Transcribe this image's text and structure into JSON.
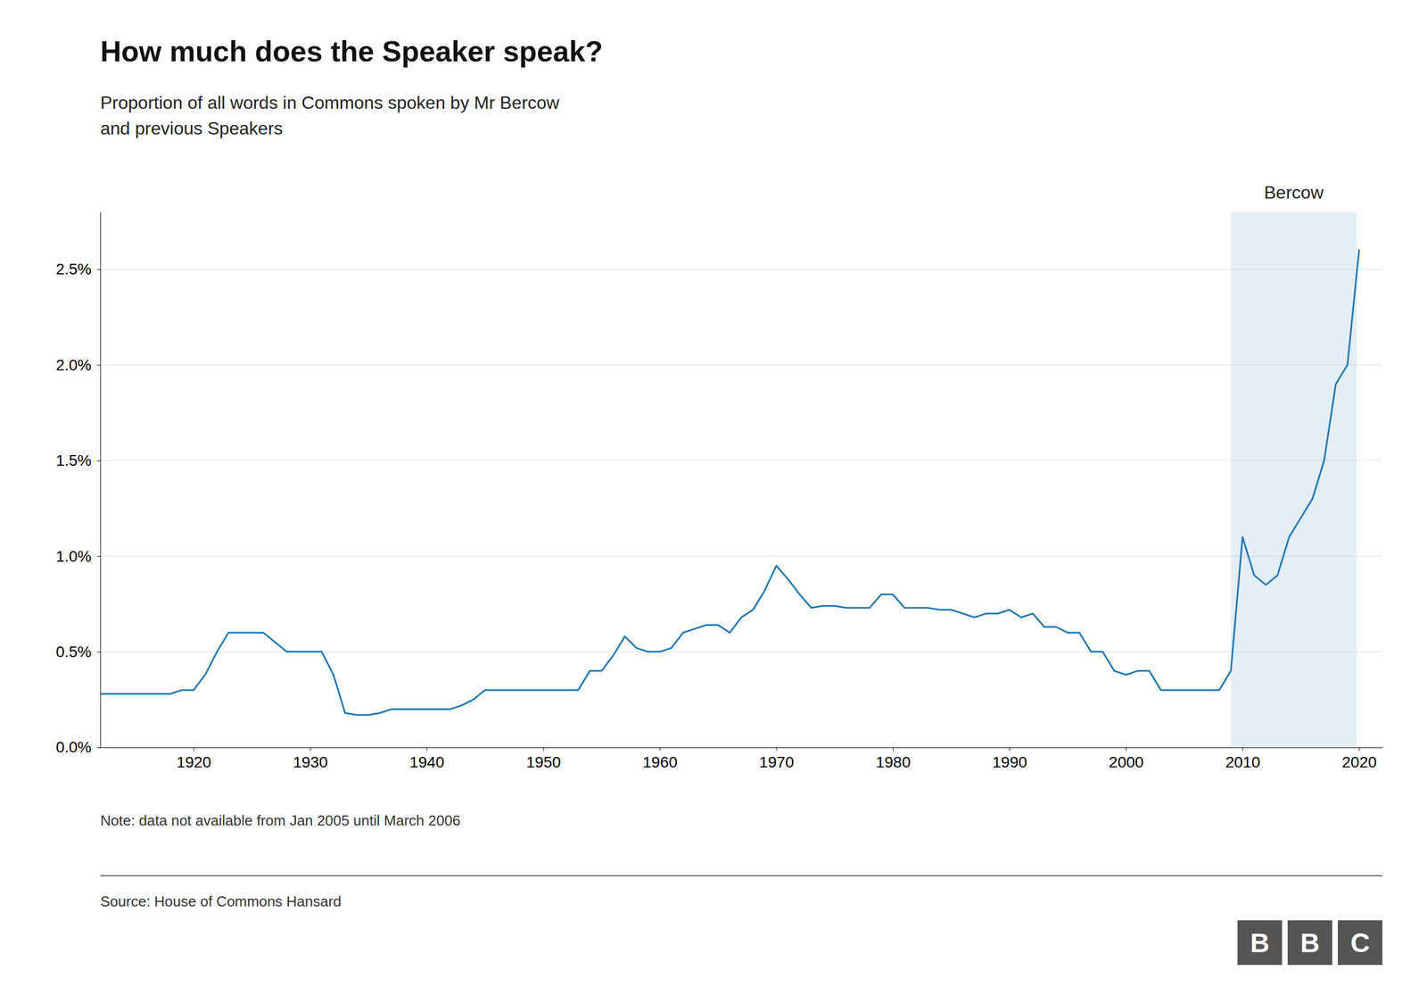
{
  "chart_data": {
    "type": "line",
    "title": "How much does the Speaker speak?",
    "subtitle": "Proportion of all words in Commons spoken by Mr Bercow\nand previous Speakers",
    "note": "Note: data not available from Jan 2005 until March 2006",
    "source": "Source: House of Commons Hansard",
    "annotations": [
      {
        "text": "Bercow",
        "x": [
          2009,
          2019.8
        ]
      }
    ],
    "logo": [
      "B",
      "B",
      "C"
    ],
    "x": [
      1912,
      1913,
      1914,
      1915,
      1916,
      1917,
      1918,
      1919,
      1920,
      1921,
      1922,
      1923,
      1924,
      1925,
      1926,
      1927,
      1928,
      1929,
      1930,
      1931,
      1932,
      1933,
      1934,
      1935,
      1936,
      1937,
      1938,
      1939,
      1940,
      1941,
      1942,
      1943,
      1944,
      1945,
      1946,
      1947,
      1948,
      1949,
      1950,
      1951,
      1952,
      1953,
      1954,
      1955,
      1956,
      1957,
      1958,
      1959,
      1960,
      1961,
      1962,
      1963,
      1964,
      1965,
      1966,
      1967,
      1968,
      1969,
      1970,
      1971,
      1972,
      1973,
      1974,
      1975,
      1976,
      1977,
      1978,
      1979,
      1980,
      1981,
      1982,
      1983,
      1984,
      1985,
      1986,
      1987,
      1988,
      1989,
      1990,
      1991,
      1992,
      1993,
      1994,
      1995,
      1996,
      1997,
      1998,
      1999,
      2000,
      2001,
      2002,
      2003,
      2004,
      2006,
      2007,
      2008,
      2009,
      2010,
      2011,
      2012,
      2013,
      2014,
      2015,
      2016,
      2017,
      2018,
      2019,
      2020
    ],
    "values": [
      0.0028,
      0.0028,
      0.0028,
      0.0028,
      0.0028,
      0.0028,
      0.0028,
      0.003,
      0.003,
      0.0038,
      0.005,
      0.006,
      0.006,
      0.006,
      0.006,
      0.0055,
      0.005,
      0.005,
      0.005,
      0.005,
      0.0038,
      0.0018,
      0.0017,
      0.0017,
      0.0018,
      0.002,
      0.002,
      0.002,
      0.002,
      0.002,
      0.002,
      0.0022,
      0.0025,
      0.003,
      0.003,
      0.003,
      0.003,
      0.003,
      0.003,
      0.003,
      0.003,
      0.003,
      0.004,
      0.004,
      0.0048,
      0.0058,
      0.0052,
      0.005,
      0.005,
      0.0052,
      0.006,
      0.0062,
      0.0064,
      0.0064,
      0.006,
      0.0068,
      0.0072,
      0.0082,
      0.0095,
      0.0088,
      0.008,
      0.0073,
      0.0074,
      0.0074,
      0.0073,
      0.0073,
      0.0073,
      0.008,
      0.008,
      0.0073,
      0.0073,
      0.0073,
      0.0072,
      0.0072,
      0.007,
      0.0068,
      0.007,
      0.007,
      0.0072,
      0.0068,
      0.007,
      0.0063,
      0.0063,
      0.006,
      0.006,
      0.005,
      0.005,
      0.004,
      0.0038,
      0.004,
      0.004,
      0.003,
      0.003,
      0.003,
      0.003,
      0.003,
      0.004,
      0.011,
      0.009,
      0.0085,
      0.009,
      0.011,
      0.012,
      0.013,
      0.015,
      0.019,
      0.02,
      0.026
    ],
    "xlim": [
      1912,
      2022
    ],
    "ylim": [
      0.0,
      0.028
    ],
    "xticks": [
      1920,
      1930,
      1940,
      1950,
      1960,
      1970,
      1980,
      1990,
      2000,
      2010,
      2020
    ],
    "yticks": [
      {
        "value": 0.0,
        "label": "0.0%"
      },
      {
        "value": 0.005,
        "label": "0.5%"
      },
      {
        "value": 0.01,
        "label": "1.0%"
      },
      {
        "value": 0.015,
        "label": "1.5%"
      },
      {
        "value": 0.02,
        "label": "2.0%"
      },
      {
        "value": 0.025,
        "label": "2.5%"
      }
    ],
    "grid": true
  }
}
